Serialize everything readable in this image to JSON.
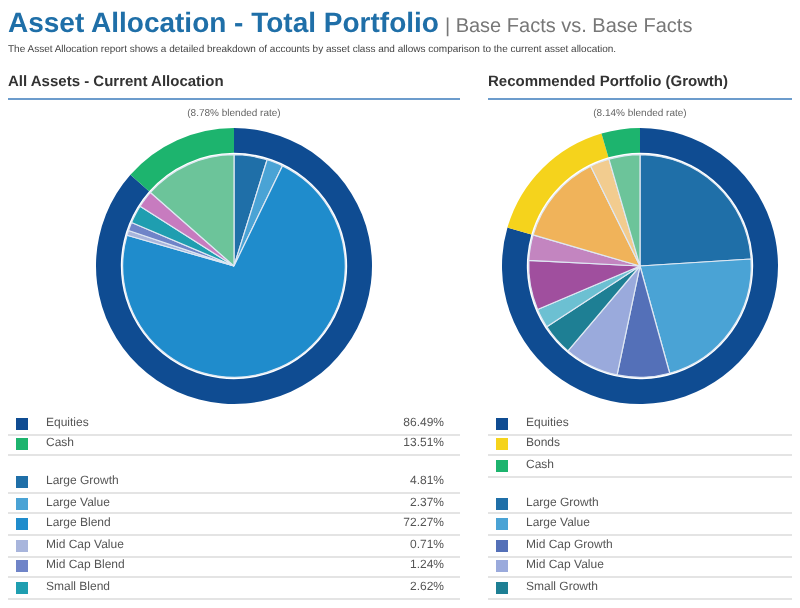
{
  "chart_data": [
    {
      "type": "donut",
      "title": "All Assets - Current Allocation",
      "subtitle": "(8.78% blended rate)",
      "legend": "bottom",
      "annotations": [
        "Asset Allocation - Total Portfolio",
        "| Base Facts vs. Base Facts",
        "The Asset Allocation report shows a detailed breakdown of accounts by asset class and allows comparison to the current asset allocation."
      ],
      "categories": [
        "Equities",
        "Cash"
      ],
      "values": [
        86.49,
        13.51
      ],
      "colors": [
        "#0f4c92",
        "#1db46e"
      ],
      "value_labels": [
        "86.49%",
        "13.51%"
      ]
    },
    {
      "type": "pie",
      "legend": "bottom",
      "categories": [
        "Large Growth",
        "Large Value",
        "Large Blend",
        "Mid Cap Value",
        "Mid Cap Blend",
        "Small Blend",
        null,
        null
      ],
      "values": [
        4.81,
        2.37,
        72.27,
        0.71,
        1.24,
        2.62,
        2.47,
        13.51
      ],
      "colors": [
        "#1f6fa8",
        "#4aa3d5",
        "#1f8ccc",
        "#a8b5dc",
        "#6f84c8",
        "#1f9eb0",
        "#c77bbf",
        "#6cc49a"
      ],
      "value_labels": [
        "4.81%",
        "2.37%",
        "72.27%",
        "0.71%",
        "1.24%",
        "2.62%",
        null,
        null
      ]
    },
    {
      "type": "donut",
      "title": "Recommended Portfolio (Growth)",
      "subtitle": "(8.14% blended rate)",
      "legend": "bottom",
      "categories": [
        "Equities",
        "Bonds",
        "Cash"
      ],
      "values": [
        79.5,
        16,
        4.5
      ],
      "colors": [
        "#0f4c92",
        "#f5d31c",
        "#1db46e"
      ]
    },
    {
      "type": "pie",
      "legend": "bottom",
      "categories": [
        "Large Growth",
        "Large Value",
        "Mid Cap Growth",
        "Mid Cap Value",
        "Small Growth",
        null,
        null,
        null,
        null,
        null,
        null
      ],
      "values": [
        24,
        21.7,
        7.6,
        7.9,
        4.6,
        2.8,
        7.2,
        3.7,
        13.2,
        2.8,
        4.5
      ],
      "colors": [
        "#1f6fa8",
        "#4aa3d5",
        "#5470b8",
        "#9aaadc",
        "#1e7f94",
        "#6cc0d2",
        "#a04f9e",
        "#c385c0",
        "#f0b35a",
        "#f2cc8f",
        "#6cc49a"
      ]
    }
  ]
}
